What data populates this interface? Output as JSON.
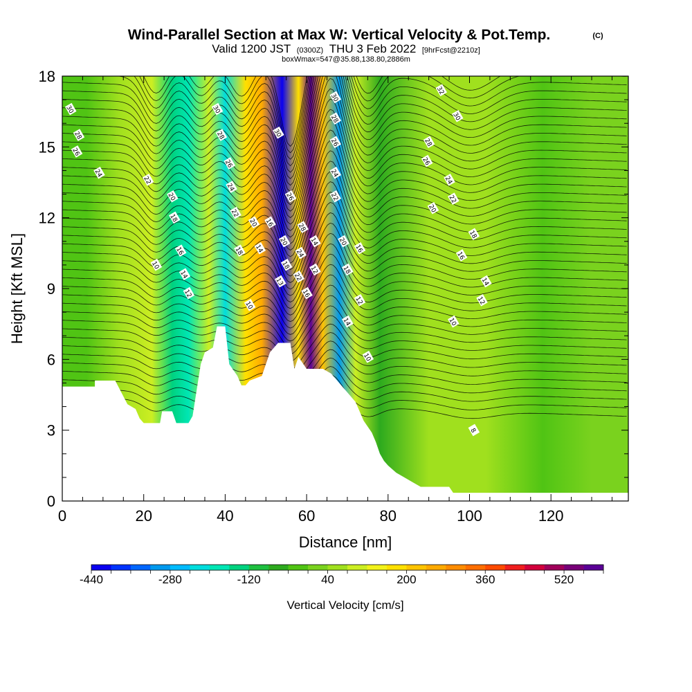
{
  "title": {
    "main": "Wind-Parallel Section at Max W: Vertical Velocity & Pot.Temp.",
    "copyright": "(C)",
    "valid_prefix": "Valid 1200 JST",
    "utc": "(0300Z)",
    "valid_date": "THU 3 Feb 2022",
    "forecast": "[9hrFcst@2210z]",
    "box": "boxWmax=547@35.88,138.80,2886m"
  },
  "chart_data": {
    "type": "heatmap",
    "xlabel": "Distance [nm]",
    "ylabel": "Height [Kft MSL]",
    "xlim": [
      0,
      139
    ],
    "ylim": [
      0,
      18
    ],
    "x_ticks": [
      "0",
      "20",
      "40",
      "60",
      "80",
      "100",
      "120"
    ],
    "y_ticks": [
      "0",
      "3",
      "6",
      "9",
      "12",
      "15",
      "18"
    ],
    "colorbar": {
      "label": "Vertical Velocity [cm/s]",
      "range": [
        -440,
        600
      ],
      "step": 40,
      "tick_labels": [
        "-440",
        "-280",
        "-120",
        "40",
        "200",
        "360",
        "520"
      ],
      "colors": [
        "#0a00f0",
        "#0033ff",
        "#0066ff",
        "#0099ee",
        "#00bbff",
        "#00dddd",
        "#00e6b4",
        "#00d27f",
        "#1ec040",
        "#2daa1e",
        "#50c414",
        "#7ad21e",
        "#a0e01e",
        "#ccee22",
        "#f2f21a",
        "#ffe000",
        "#ffc400",
        "#ffaa00",
        "#ff8c00",
        "#ff6e00",
        "#ff4b00",
        "#f01e1e",
        "#d2003c",
        "#a0005a",
        "#780078",
        "#5a0096"
      ]
    },
    "velocity_bands": [
      {
        "x": 6,
        "w": -40
      },
      {
        "x": 14,
        "w": 60
      },
      {
        "x": 22,
        "w": 110
      },
      {
        "x": 27,
        "w": -130
      },
      {
        "x": 31,
        "w": -200
      },
      {
        "x": 36,
        "w": 90
      },
      {
        "x": 40,
        "w": -240
      },
      {
        "x": 45,
        "w": 160
      },
      {
        "x": 49,
        "w": 240
      },
      {
        "x": 54,
        "w": -430
      },
      {
        "x": 58,
        "w": 160
      },
      {
        "x": 61,
        "w": 560
      },
      {
        "x": 64,
        "w": 200
      },
      {
        "x": 68,
        "w": -320
      },
      {
        "x": 72,
        "w": 110
      },
      {
        "x": 78,
        "w": -60
      },
      {
        "x": 90,
        "w": 40
      },
      {
        "x": 104,
        "w": 70
      },
      {
        "x": 118,
        "w": -30
      },
      {
        "x": 130,
        "w": 30
      }
    ],
    "terrain": [
      {
        "x": 0,
        "h": 4.85
      },
      {
        "x": 8,
        "h": 4.85
      },
      {
        "x": 8,
        "h": 5.1
      },
      {
        "x": 13,
        "h": 5.1
      },
      {
        "x": 16,
        "h": 4.1
      },
      {
        "x": 18,
        "h": 3.9
      },
      {
        "x": 19,
        "h": 3.5
      },
      {
        "x": 20,
        "h": 3.3
      },
      {
        "x": 24,
        "h": 3.3
      },
      {
        "x": 24.5,
        "h": 3.8
      },
      {
        "x": 27,
        "h": 3.8
      },
      {
        "x": 28,
        "h": 3.3
      },
      {
        "x": 31,
        "h": 3.3
      },
      {
        "x": 32,
        "h": 3.6
      },
      {
        "x": 34,
        "h": 5.8
      },
      {
        "x": 35,
        "h": 6.3
      },
      {
        "x": 37,
        "h": 6.5
      },
      {
        "x": 38,
        "h": 7.4
      },
      {
        "x": 40,
        "h": 7.4
      },
      {
        "x": 41,
        "h": 5.8
      },
      {
        "x": 43,
        "h": 5.3
      },
      {
        "x": 44,
        "h": 4.9
      },
      {
        "x": 45,
        "h": 4.9
      },
      {
        "x": 46,
        "h": 5.1
      },
      {
        "x": 49,
        "h": 5.3
      },
      {
        "x": 51,
        "h": 6.3
      },
      {
        "x": 53,
        "h": 6.7
      },
      {
        "x": 56,
        "h": 6.7
      },
      {
        "x": 57,
        "h": 5.6
      },
      {
        "x": 58,
        "h": 6.1
      },
      {
        "x": 60,
        "h": 5.6
      },
      {
        "x": 62,
        "h": 5.6
      },
      {
        "x": 64,
        "h": 5.6
      },
      {
        "x": 66,
        "h": 5.4
      },
      {
        "x": 69,
        "h": 4.8
      },
      {
        "x": 72,
        "h": 4.2
      },
      {
        "x": 74,
        "h": 3.4
      },
      {
        "x": 76,
        "h": 2.9
      },
      {
        "x": 77,
        "h": 2.5
      },
      {
        "x": 78,
        "h": 2.0
      },
      {
        "x": 79,
        "h": 1.7
      },
      {
        "x": 80,
        "h": 1.5
      },
      {
        "x": 82,
        "h": 1.2
      },
      {
        "x": 84,
        "h": 1.0
      },
      {
        "x": 86,
        "h": 0.8
      },
      {
        "x": 88,
        "h": 0.6
      },
      {
        "x": 95,
        "h": 0.6
      },
      {
        "x": 96,
        "h": 0.35
      },
      {
        "x": 139,
        "h": 0.35
      }
    ],
    "theta_labels": [
      {
        "x": 2,
        "y": 16.6,
        "t": "30"
      },
      {
        "x": 4,
        "y": 15.5,
        "t": "28"
      },
      {
        "x": 3.5,
        "y": 14.8,
        "t": "26"
      },
      {
        "x": 9,
        "y": 13.9,
        "t": "24"
      },
      {
        "x": 21,
        "y": 13.6,
        "t": "22"
      },
      {
        "x": 27,
        "y": 12.9,
        "t": "20"
      },
      {
        "x": 27.5,
        "y": 12.0,
        "t": "18"
      },
      {
        "x": 29,
        "y": 10.6,
        "t": "16"
      },
      {
        "x": 30,
        "y": 9.6,
        "t": "14"
      },
      {
        "x": 31,
        "y": 8.8,
        "t": "12"
      },
      {
        "x": 23,
        "y": 10.0,
        "t": "10"
      },
      {
        "x": 38,
        "y": 16.6,
        "t": "30"
      },
      {
        "x": 39,
        "y": 15.5,
        "t": "28"
      },
      {
        "x": 41,
        "y": 14.3,
        "t": "26"
      },
      {
        "x": 41.5,
        "y": 13.3,
        "t": "24"
      },
      {
        "x": 42.5,
        "y": 12.2,
        "t": "22"
      },
      {
        "x": 47,
        "y": 11.8,
        "t": "20"
      },
      {
        "x": 51,
        "y": 11.8,
        "t": "16"
      },
      {
        "x": 48.5,
        "y": 10.7,
        "t": "14"
      },
      {
        "x": 43.5,
        "y": 10.6,
        "t": "18"
      },
      {
        "x": 46,
        "y": 8.3,
        "t": "10"
      },
      {
        "x": 53,
        "y": 15.6,
        "t": "30"
      },
      {
        "x": 56,
        "y": 12.9,
        "t": "26"
      },
      {
        "x": 59,
        "y": 11.6,
        "t": "28"
      },
      {
        "x": 54.5,
        "y": 11.0,
        "t": "20"
      },
      {
        "x": 55,
        "y": 10.0,
        "t": "18"
      },
      {
        "x": 53.5,
        "y": 9.3,
        "t": "13"
      },
      {
        "x": 58.5,
        "y": 10.5,
        "t": "24"
      },
      {
        "x": 58,
        "y": 9.5,
        "t": "22"
      },
      {
        "x": 60,
        "y": 8.8,
        "t": "16"
      },
      {
        "x": 62,
        "y": 11.0,
        "t": "14"
      },
      {
        "x": 62,
        "y": 9.8,
        "t": "12"
      },
      {
        "x": 67,
        "y": 17.1,
        "t": "30"
      },
      {
        "x": 67,
        "y": 16.2,
        "t": "28"
      },
      {
        "x": 67,
        "y": 15.2,
        "t": "26"
      },
      {
        "x": 67,
        "y": 13.9,
        "t": "24"
      },
      {
        "x": 67,
        "y": 12.9,
        "t": "22"
      },
      {
        "x": 69,
        "y": 11.0,
        "t": "20"
      },
      {
        "x": 70,
        "y": 9.8,
        "t": "18"
      },
      {
        "x": 73,
        "y": 10.7,
        "t": "16"
      },
      {
        "x": 73,
        "y": 8.5,
        "t": "12"
      },
      {
        "x": 70,
        "y": 7.6,
        "t": "14"
      },
      {
        "x": 75,
        "y": 6.1,
        "t": "10"
      },
      {
        "x": 93,
        "y": 17.4,
        "t": "32"
      },
      {
        "x": 97,
        "y": 16.3,
        "t": "30"
      },
      {
        "x": 90,
        "y": 15.2,
        "t": "28"
      },
      {
        "x": 89.5,
        "y": 14.4,
        "t": "26"
      },
      {
        "x": 95,
        "y": 13.6,
        "t": "24"
      },
      {
        "x": 96,
        "y": 12.8,
        "t": "22"
      },
      {
        "x": 91,
        "y": 12.4,
        "t": "20"
      },
      {
        "x": 101,
        "y": 11.3,
        "t": "18"
      },
      {
        "x": 98,
        "y": 10.4,
        "t": "16"
      },
      {
        "x": 104,
        "y": 9.3,
        "t": "14"
      },
      {
        "x": 103,
        "y": 8.5,
        "t": "12"
      },
      {
        "x": 96,
        "y": 7.6,
        "t": "10"
      },
      {
        "x": 101,
        "y": 3.0,
        "t": "8"
      }
    ]
  }
}
